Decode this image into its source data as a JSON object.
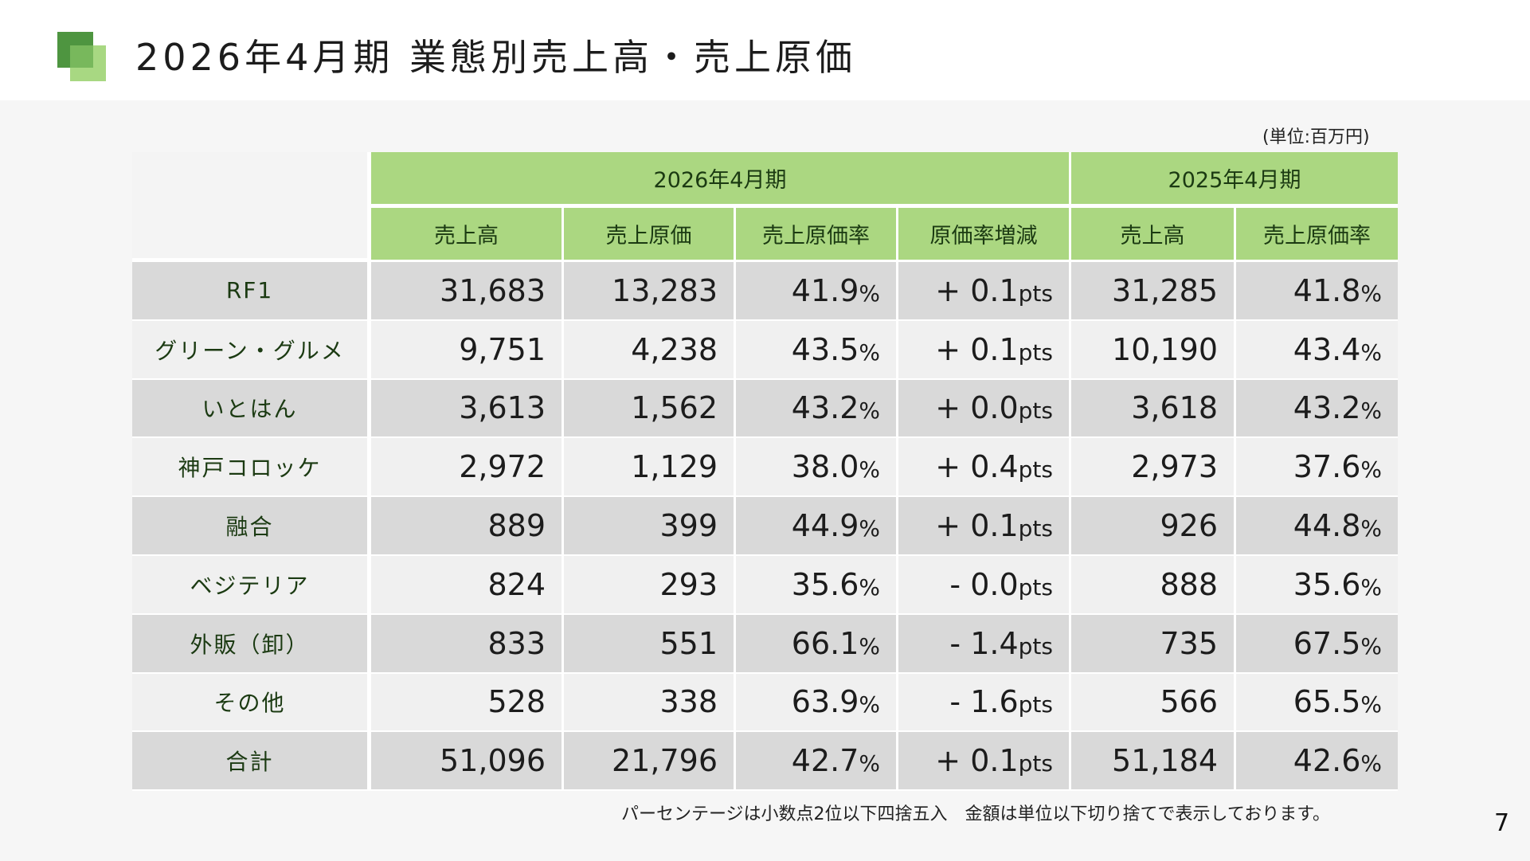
{
  "title": "2026年4月期 業態別売上高・売上原価",
  "unit_note": "(単位:百万円)",
  "header": {
    "period_current": "2026年4月期",
    "period_prior": "2025年4月期",
    "columns": [
      "売上高",
      "売上原価",
      "売上原価率",
      "原価率増減",
      "売上高",
      "売上原価率"
    ]
  },
  "rows": [
    {
      "label": "RF1",
      "sales": "31,683",
      "cost": "13,283",
      "rate": "41.9",
      "diff": "+ 0.1",
      "prior_sales": "31,285",
      "prior_rate": "41.8"
    },
    {
      "label": "グリーン・グルメ",
      "sales": "9,751",
      "cost": "4,238",
      "rate": "43.5",
      "diff": "+ 0.1",
      "prior_sales": "10,190",
      "prior_rate": "43.4"
    },
    {
      "label": "いとはん",
      "sales": "3,613",
      "cost": "1,562",
      "rate": "43.2",
      "diff": "+ 0.0",
      "prior_sales": "3,618",
      "prior_rate": "43.2"
    },
    {
      "label": "神戸コロッケ",
      "sales": "2,972",
      "cost": "1,129",
      "rate": "38.0",
      "diff": "+ 0.4",
      "prior_sales": "2,973",
      "prior_rate": "37.6"
    },
    {
      "label": "融合",
      "sales": "889",
      "cost": "399",
      "rate": "44.9",
      "diff": "+ 0.1",
      "prior_sales": "926",
      "prior_rate": "44.8"
    },
    {
      "label": "ベジテリア",
      "sales": "824",
      "cost": "293",
      "rate": "35.6",
      "diff": "- 0.0",
      "prior_sales": "888",
      "prior_rate": "35.6"
    },
    {
      "label": "外販（卸）",
      "sales": "833",
      "cost": "551",
      "rate": "66.1",
      "diff": "- 1.4",
      "prior_sales": "735",
      "prior_rate": "67.5"
    },
    {
      "label": "その他",
      "sales": "528",
      "cost": "338",
      "rate": "63.9",
      "diff": "- 1.6",
      "prior_sales": "566",
      "prior_rate": "65.5"
    },
    {
      "label": "合計",
      "sales": "51,096",
      "cost": "21,796",
      "rate": "42.7",
      "diff": "+ 0.1",
      "prior_sales": "51,184",
      "prior_rate": "42.6"
    }
  ],
  "suffix_pct": "%",
  "suffix_pts": "pts",
  "footnote": "パーセンテージは小数点2位以下四捨五入　金額は単位以下切り捨てで表示しております。",
  "page_number": "7",
  "colors": {
    "header_green": "#abd781",
    "logo_dark": "#4e9540",
    "logo_light": "#a8d882",
    "row_odd": "#d9d9d9",
    "row_even": "#f0f0f0"
  }
}
